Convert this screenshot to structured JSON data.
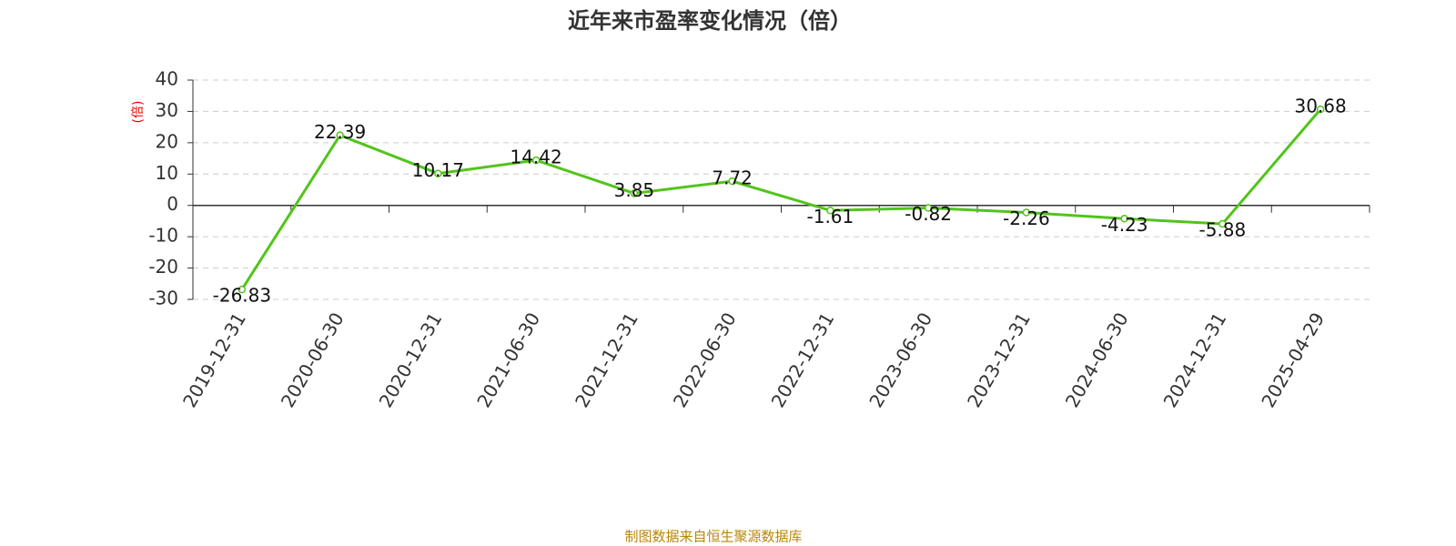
{
  "chart_data": {
    "type": "line",
    "title": "近年来市盈率变化情况（倍）",
    "y_axis_label": "(倍)",
    "source": "制图数据来自恒生聚源数据库",
    "categories": [
      "2019-12-31",
      "2020-06-30",
      "2020-12-31",
      "2021-06-30",
      "2021-12-31",
      "2022-06-30",
      "2022-12-31",
      "2023-06-30",
      "2023-12-31",
      "2024-06-30",
      "2024-12-31",
      "2025-04-29"
    ],
    "series": [
      {
        "name": "市盈率",
        "color": "#52c41a",
        "values": [
          -26.83,
          22.39,
          10.17,
          14.42,
          3.85,
          7.72,
          -1.61,
          -0.82,
          -2.26,
          -4.23,
          -5.88,
          30.68
        ]
      }
    ],
    "ylim": [
      -30,
      40
    ],
    "yticks": [
      -30,
      -20,
      -10,
      0,
      10,
      20,
      30,
      40
    ],
    "grid": true
  }
}
